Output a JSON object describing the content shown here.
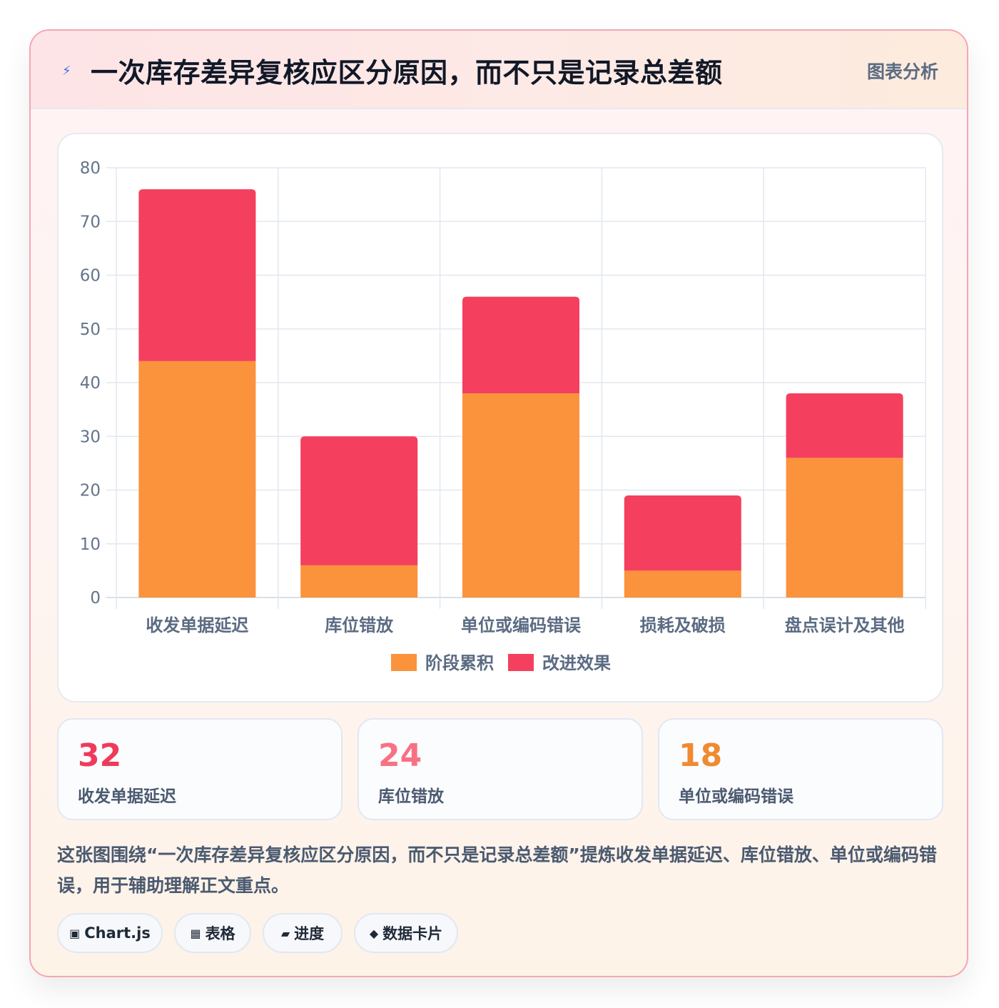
{
  "header": {
    "title": "一次库存差异复核应区分原因，而不只是记录总差额",
    "tag": "图表分析"
  },
  "chart_data": {
    "type": "bar",
    "stacked": true,
    "categories": [
      "收发单据延迟",
      "库位错放",
      "单位或编码错误",
      "损耗及破损",
      "盘点误计及其他"
    ],
    "series": [
      {
        "name": "阶段累积",
        "color": "#fb923c",
        "values": [
          44,
          6,
          38,
          5,
          26
        ]
      },
      {
        "name": "改进效果",
        "color": "#f43f5e",
        "values": [
          32,
          24,
          18,
          14,
          12
        ]
      }
    ],
    "ylim": [
      0,
      80
    ],
    "yticks": [
      "0",
      "10",
      "20",
      "30",
      "40",
      "50",
      "60",
      "70",
      "80"
    ],
    "grid": true,
    "legend": "bottom"
  },
  "stats": [
    {
      "value": "32",
      "label": "收发单据延迟",
      "color": "#ef3b5b"
    },
    {
      "value": "24",
      "label": "库位错放",
      "color": "#f87183"
    },
    {
      "value": "18",
      "label": "单位或编码错误",
      "color": "#f08a30"
    }
  ],
  "description": "这张图围绕“一次库存差异复核应区分原因，而不只是记录总差额”提炼收发单据延迟、库位错放、单位或编码错误，用于辅助理解正文重点。",
  "pills": [
    {
      "icon": "▣",
      "icon_name": "chart-icon",
      "label": "Chart.js"
    },
    {
      "icon": "▦",
      "icon_name": "table-icon",
      "label": "表格"
    },
    {
      "icon": "▰",
      "icon_name": "progress-icon",
      "label": "进度"
    },
    {
      "icon": "◆",
      "icon_name": "card-icon",
      "label": "数据卡片"
    }
  ]
}
